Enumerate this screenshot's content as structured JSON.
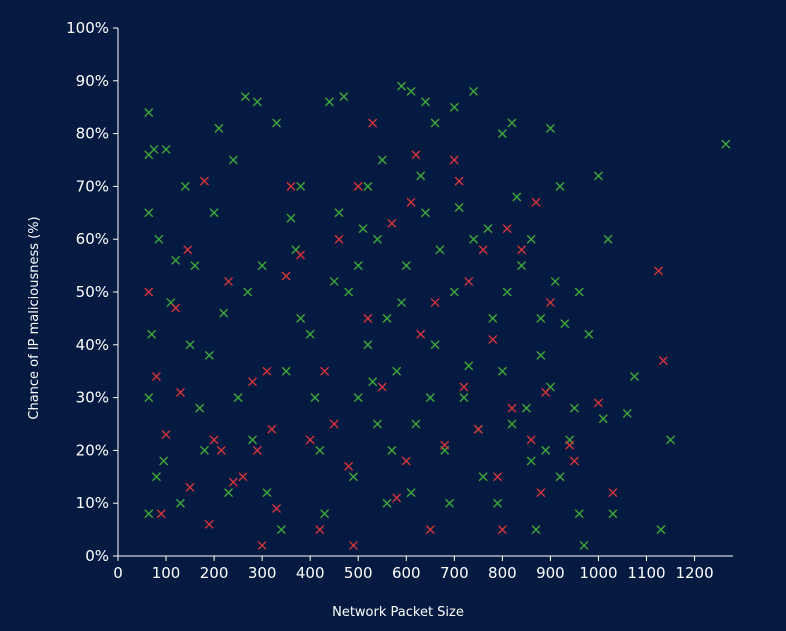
{
  "chart_data": {
    "type": "scatter",
    "title": "",
    "xlabel": "Network Packet Size",
    "ylabel": "Chance of IP maliciousness (%)",
    "xlim": [
      0,
      1280
    ],
    "ylim": [
      0,
      100
    ],
    "x_ticks": [
      0,
      100,
      200,
      300,
      400,
      500,
      600,
      700,
      800,
      900,
      1000,
      1100,
      1200
    ],
    "y_ticks": [
      0,
      10,
      20,
      30,
      40,
      50,
      60,
      70,
      80,
      90,
      100
    ],
    "y_tick_labels": [
      "0%",
      "10%",
      "20%",
      "30%",
      "40%",
      "50%",
      "60%",
      "70%",
      "80%",
      "90%",
      "100%"
    ],
    "marker": "x",
    "grid": false,
    "legend": "none",
    "series": [
      {
        "color": "#3ea83a",
        "points": [
          [
            64,
            84
          ],
          [
            75,
            77
          ],
          [
            100,
            77
          ],
          [
            64,
            76
          ],
          [
            85,
            60
          ],
          [
            64,
            65
          ],
          [
            70,
            42
          ],
          [
            64,
            30
          ],
          [
            80,
            15
          ],
          [
            64,
            8
          ],
          [
            120,
            56
          ],
          [
            150,
            40
          ],
          [
            180,
            20
          ],
          [
            210,
            81
          ],
          [
            240,
            75
          ],
          [
            265,
            87
          ],
          [
            290,
            86
          ],
          [
            330,
            82
          ],
          [
            360,
            64
          ],
          [
            380,
            45
          ],
          [
            410,
            30
          ],
          [
            440,
            86
          ],
          [
            470,
            87
          ],
          [
            500,
            55
          ],
          [
            520,
            40
          ],
          [
            540,
            25
          ],
          [
            560,
            10
          ],
          [
            590,
            89
          ],
          [
            610,
            88
          ],
          [
            640,
            86
          ],
          [
            660,
            82
          ],
          [
            700,
            85
          ],
          [
            740,
            88
          ],
          [
            800,
            80
          ],
          [
            820,
            82
          ],
          [
            860,
            60
          ],
          [
            880,
            45
          ],
          [
            900,
            81
          ],
          [
            920,
            70
          ],
          [
            960,
            50
          ],
          [
            1000,
            72
          ],
          [
            1020,
            60
          ],
          [
            1060,
            27
          ],
          [
            1075,
            34
          ],
          [
            1130,
            5
          ],
          [
            1150,
            22
          ],
          [
            1265,
            78
          ],
          [
            300,
            55
          ],
          [
            350,
            35
          ],
          [
            380,
            70
          ],
          [
            420,
            20
          ],
          [
            460,
            65
          ],
          [
            480,
            50
          ],
          [
            500,
            30
          ],
          [
            520,
            70
          ],
          [
            540,
            60
          ],
          [
            560,
            45
          ],
          [
            580,
            35
          ],
          [
            600,
            55
          ],
          [
            620,
            25
          ],
          [
            640,
            65
          ],
          [
            660,
            40
          ],
          [
            680,
            20
          ],
          [
            700,
            50
          ],
          [
            720,
            30
          ],
          [
            740,
            60
          ],
          [
            760,
            15
          ],
          [
            780,
            45
          ],
          [
            800,
            35
          ],
          [
            820,
            25
          ],
          [
            840,
            55
          ],
          [
            860,
            18
          ],
          [
            880,
            38
          ],
          [
            900,
            32
          ],
          [
            920,
            15
          ],
          [
            940,
            22
          ],
          [
            960,
            8
          ],
          [
            980,
            42
          ],
          [
            1010,
            26
          ],
          [
            1030,
            8
          ],
          [
            250,
            30
          ],
          [
            270,
            50
          ],
          [
            230,
            12
          ],
          [
            200,
            65
          ],
          [
            170,
            28
          ],
          [
            140,
            70
          ],
          [
            110,
            48
          ],
          [
            95,
            18
          ],
          [
            130,
            10
          ],
          [
            160,
            55
          ],
          [
            190,
            38
          ],
          [
            220,
            46
          ],
          [
            280,
            22
          ],
          [
            310,
            12
          ],
          [
            340,
            5
          ],
          [
            370,
            58
          ],
          [
            400,
            42
          ],
          [
            430,
            8
          ],
          [
            450,
            52
          ],
          [
            490,
            15
          ],
          [
            510,
            62
          ],
          [
            530,
            33
          ],
          [
            550,
            75
          ],
          [
            570,
            20
          ],
          [
            590,
            48
          ],
          [
            610,
            12
          ],
          [
            630,
            72
          ],
          [
            650,
            30
          ],
          [
            670,
            58
          ],
          [
            690,
            10
          ],
          [
            710,
            66
          ],
          [
            730,
            36
          ],
          [
            750,
            24
          ],
          [
            770,
            62
          ],
          [
            790,
            10
          ],
          [
            810,
            50
          ],
          [
            830,
            68
          ],
          [
            850,
            28
          ],
          [
            870,
            5
          ],
          [
            890,
            20
          ],
          [
            910,
            52
          ],
          [
            930,
            44
          ],
          [
            950,
            28
          ],
          [
            970,
            2
          ]
        ]
      },
      {
        "color": "#d6343a",
        "points": [
          [
            64,
            50
          ],
          [
            80,
            34
          ],
          [
            90,
            8
          ],
          [
            100,
            23
          ],
          [
            120,
            47
          ],
          [
            130,
            31
          ],
          [
            145,
            58
          ],
          [
            150,
            13
          ],
          [
            180,
            71
          ],
          [
            190,
            6
          ],
          [
            200,
            22
          ],
          [
            215,
            20
          ],
          [
            230,
            52
          ],
          [
            240,
            14
          ],
          [
            260,
            15
          ],
          [
            280,
            33
          ],
          [
            290,
            20
          ],
          [
            300,
            2
          ],
          [
            310,
            35
          ],
          [
            320,
            24
          ],
          [
            330,
            9
          ],
          [
            350,
            53
          ],
          [
            360,
            70
          ],
          [
            380,
            57
          ],
          [
            400,
            22
          ],
          [
            420,
            5
          ],
          [
            430,
            35
          ],
          [
            450,
            25
          ],
          [
            460,
            60
          ],
          [
            480,
            17
          ],
          [
            490,
            2
          ],
          [
            500,
            70
          ],
          [
            520,
            45
          ],
          [
            530,
            82
          ],
          [
            550,
            32
          ],
          [
            570,
            63
          ],
          [
            580,
            11
          ],
          [
            600,
            18
          ],
          [
            610,
            67
          ],
          [
            620,
            76
          ],
          [
            630,
            42
          ],
          [
            650,
            5
          ],
          [
            660,
            48
          ],
          [
            680,
            21
          ],
          [
            700,
            75
          ],
          [
            710,
            71
          ],
          [
            720,
            32
          ],
          [
            730,
            52
          ],
          [
            750,
            24
          ],
          [
            760,
            58
          ],
          [
            780,
            41
          ],
          [
            790,
            15
          ],
          [
            800,
            5
          ],
          [
            810,
            62
          ],
          [
            820,
            28
          ],
          [
            840,
            58
          ],
          [
            860,
            22
          ],
          [
            870,
            67
          ],
          [
            880,
            12
          ],
          [
            890,
            31
          ],
          [
            900,
            48
          ],
          [
            940,
            21
          ],
          [
            950,
            18
          ],
          [
            1000,
            29
          ],
          [
            1030,
            12
          ],
          [
            1125,
            54
          ],
          [
            1135,
            37
          ]
        ]
      }
    ]
  }
}
